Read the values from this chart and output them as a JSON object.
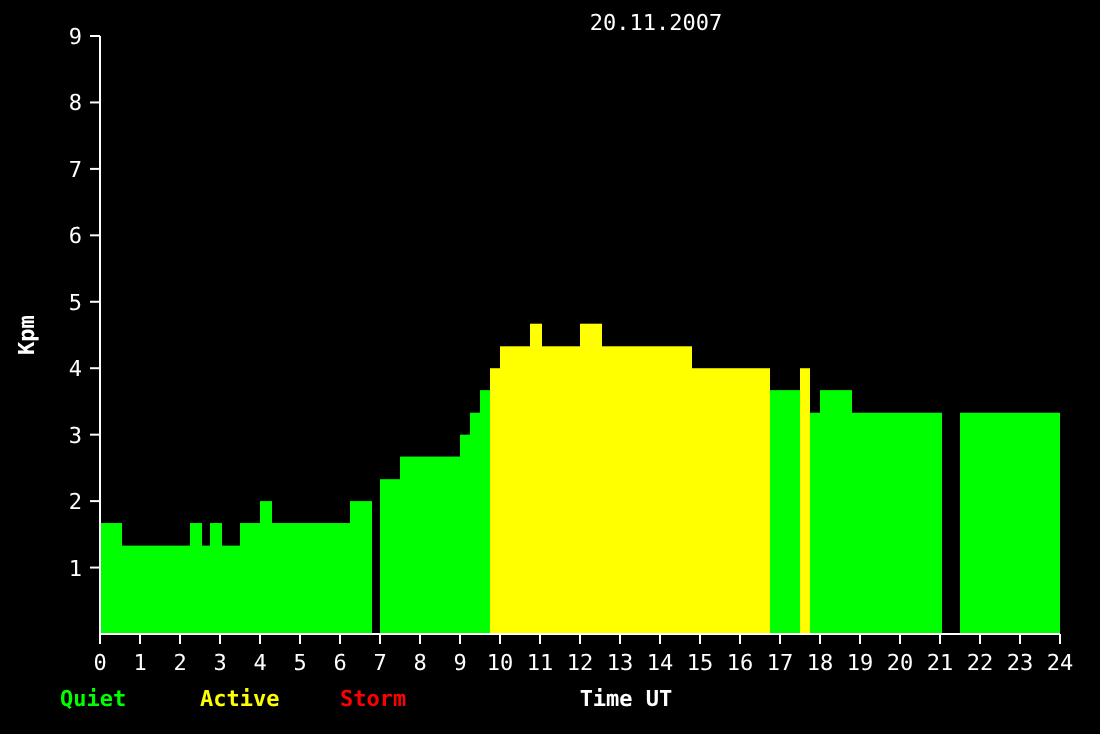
{
  "chart_data": {
    "type": "histogram",
    "title": "20.11.2007",
    "xlabel": "Time UT",
    "ylabel": "Kpm",
    "bins": [
      0,
      0.55,
      2.25,
      2.55,
      2.75,
      3.05,
      3.5,
      4.0,
      4.3,
      6.25,
      6.8,
      7.0,
      7.5,
      9.0,
      9.25,
      9.5,
      9.75,
      10.0,
      10.75,
      11.05,
      12.0,
      12.55,
      14.8,
      16.75,
      17.5,
      17.75,
      18.0,
      18.8,
      21.05,
      21.5,
      24
    ],
    "series": [
      {
        "name": "Quiet",
        "color": "#00ff00",
        "values": [
          1.67,
          1.33,
          1.67,
          1.33,
          1.67,
          1.33,
          1.67,
          2,
          1.67,
          2,
          null,
          2.33,
          2.67,
          3,
          3.33,
          3.67,
          null,
          null,
          null,
          null,
          null,
          null,
          null,
          3.67,
          null,
          3.33,
          3.67,
          3.33,
          null,
          3.33
        ]
      },
      {
        "name": "Active",
        "color": "#ffff00",
        "values": [
          null,
          null,
          null,
          null,
          null,
          null,
          null,
          null,
          null,
          null,
          null,
          null,
          null,
          null,
          null,
          null,
          4,
          4.33,
          4.67,
          4.33,
          4.67,
          4.33,
          4,
          null,
          4,
          null,
          null,
          null,
          null,
          null
        ]
      }
    ],
    "annotations": [
      "Storm"
    ],
    "xlim": [
      0,
      24
    ],
    "xticks": [
      0,
      1,
      2,
      3,
      4,
      5,
      6,
      7,
      8,
      9,
      10,
      11,
      12,
      13,
      14,
      15,
      16,
      17,
      18,
      19,
      20,
      21,
      22,
      23,
      24
    ],
    "ylim": [
      0,
      9
    ],
    "yticks": [
      1,
      2,
      3,
      4,
      5,
      6,
      7,
      8,
      9
    ],
    "legend": "bottom left",
    "grid": false
  }
}
